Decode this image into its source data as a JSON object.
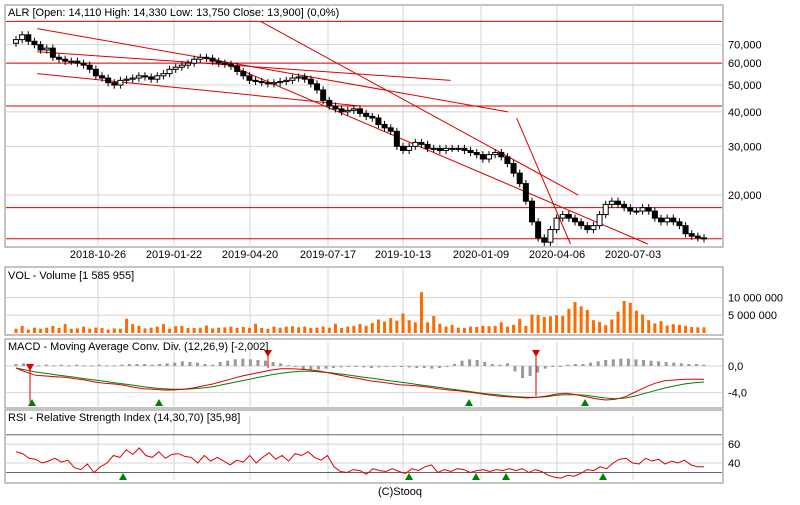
{
  "footer": "(C)Stooq",
  "colors": {
    "candle_up": "#ffffff",
    "candle_down": "#000000",
    "trendline": "#dd0000",
    "volume": "#ff6a00",
    "macd_line": "#dd0000",
    "signal_line": "#008000",
    "histogram": "#999999",
    "rsi_line": "#dd0000",
    "marker_up": "#008000",
    "marker_down": "#dd0000",
    "grid": "#d4d4d4",
    "frame": "#888888"
  },
  "chart_data": [
    {
      "type": "candlestick",
      "title": "ALR [Open: 14,110  High: 14,330  Low: 13,750  Close: 13,900] (0,0%)",
      "scale": "log",
      "ylim": [
        13300,
        95000
      ],
      "y_ticks": [
        70000,
        60000,
        50000,
        40000,
        30000,
        20000
      ],
      "y_tick_labels": [
        "70,000",
        "60,000",
        "50,000",
        "40,000",
        "30,000",
        "20,000"
      ],
      "x_tick_labels": [
        "2018-10-26",
        "2019-01-22",
        "2019-04-20",
        "2019-07-17",
        "2019-10-13",
        "2020-01-09",
        "2020-04-06",
        "2020-07-03"
      ],
      "grid": true,
      "horizontal_lines": [
        85000,
        60000,
        42000,
        18000,
        13900
      ],
      "closes": [
        73000,
        76000,
        72000,
        70000,
        67000,
        68000,
        63000,
        62000,
        61000,
        61000,
        60000,
        59000,
        57000,
        54000,
        53000,
        51000,
        50000,
        52000,
        52500,
        53000,
        54000,
        53500,
        52500,
        54000,
        55000,
        57000,
        58000,
        59000,
        60000,
        62000,
        63000,
        62500,
        61000,
        60000,
        59500,
        58500,
        56000,
        54000,
        52000,
        51500,
        51000,
        50500,
        51000,
        51500,
        52000,
        53000,
        53500,
        52500,
        50500,
        48000,
        44000,
        42000,
        41000,
        40000,
        40500,
        41000,
        39500,
        38500,
        38000,
        36000,
        35000,
        34000,
        30000,
        29000,
        30000,
        31000,
        30500,
        29500,
        29500,
        29000,
        29500,
        29500,
        29500,
        29000,
        28500,
        28000,
        27000,
        28000,
        28500,
        27500,
        26000,
        24000,
        22000,
        19000,
        16000,
        14000,
        13500,
        15000,
        16500,
        17000,
        16500,
        16000,
        15500,
        15000,
        15500,
        17000,
        18500,
        19000,
        18500,
        18000,
        17500,
        17500,
        18000,
        17500,
        16500,
        16000,
        16500,
        16000,
        15500,
        14500,
        14200,
        14000,
        13900
      ],
      "series": [
        {
          "name": "",
          "type": "trendline",
          "points": [
            [
              "2018-08-17",
              80000
            ],
            [
              "2020-02-10",
              40000
            ]
          ]
        },
        {
          "name": "",
          "type": "trendline",
          "points": [
            [
              "2018-08-17",
              55000
            ],
            [
              "2019-08-24",
              42000
            ]
          ]
        },
        {
          "name": "",
          "type": "trendline",
          "points": [
            [
              "2018-08-17",
              66000
            ],
            [
              "2019-12-06",
              52000
            ]
          ]
        },
        {
          "name": "",
          "type": "trendline",
          "points": [
            [
              "2019-03-10",
              62000
            ],
            [
              "2020-07-20",
              13300
            ]
          ]
        },
        {
          "name": "",
          "type": "trendline",
          "points": [
            [
              "2019-05-01",
              85000
            ],
            [
              "2020-05-01",
              20000
            ]
          ]
        },
        {
          "name": "",
          "type": "trendline",
          "points": [
            [
              "2020-02-20",
              38000
            ],
            [
              "2020-04-22",
              13300
            ]
          ]
        }
      ]
    },
    {
      "type": "bar",
      "title": "VOL - Volume [1 585 955]",
      "ylim": [
        0,
        13500000
      ],
      "y_ticks": [
        10000000,
        5000000
      ],
      "y_tick_labels": [
        "10 000 000",
        "5 000 000"
      ],
      "values": [
        1200000,
        2000000,
        1000000,
        1500000,
        1200000,
        1500000,
        2000000,
        1400000,
        2500000,
        1200000,
        1300000,
        1800000,
        1200000,
        1500000,
        1400000,
        1000000,
        1300000,
        1200000,
        4000000,
        2500000,
        2000000,
        1300000,
        1500000,
        1800000,
        2500000,
        1200000,
        1900000,
        2000000,
        1400000,
        1400000,
        1500000,
        2100000,
        1300000,
        1500000,
        1600000,
        1800000,
        1400000,
        1700000,
        1400000,
        2600000,
        1400000,
        1200000,
        1800000,
        1500000,
        1800000,
        1900000,
        1600000,
        1800000,
        1400000,
        1500000,
        1800000,
        1500000,
        2600000,
        1400000,
        1800000,
        2000000,
        2500000,
        2000000,
        2800000,
        3800000,
        3200000,
        4200000,
        3500000,
        5500000,
        3600000,
        3000000,
        11500000,
        3000000,
        4800000,
        2600000,
        1800000,
        2300000,
        1500000,
        1400000,
        1800000,
        1700000,
        2000000,
        1900000,
        2000000,
        3000000,
        1800000,
        2300000,
        4000000,
        2000000,
        5200000,
        5000000,
        4500000,
        4700000,
        5000000,
        4800000,
        6800000,
        8700000,
        7500000,
        6500000,
        3600000,
        3100000,
        2200000,
        3800000,
        6000000,
        9000000,
        8500000,
        6300000,
        5200000,
        3600000,
        2700000,
        3300000,
        2100000,
        2500000,
        2300000,
        2000000,
        1700000,
        1600000,
        1600000
      ]
    },
    {
      "type": "line",
      "title": "MACD - Moving Average Conv. Div. (12,26,9) [-2,002]",
      "ylim": [
        -6,
        1.8
      ],
      "y_ticks": [
        0,
        -4
      ],
      "y_tick_labels": [
        "0,0",
        "-4,0"
      ],
      "series": [
        {
          "name": "",
          "values": [
            -0.3,
            -0.9,
            -1.4,
            -1.5,
            -1.6,
            -1.7,
            -1.9,
            -2.1,
            -2.4,
            -2.6,
            -2.7,
            -2.9,
            -3.2,
            -3.4,
            -3.5,
            -3.6,
            -3.6,
            -3.5,
            -3.3,
            -3.0,
            -2.7,
            -2.3,
            -1.9,
            -1.5,
            -1.2,
            -0.9,
            -0.6,
            -0.4,
            -0.4,
            -0.5,
            -0.6,
            -0.8,
            -1.1,
            -1.4,
            -1.7,
            -1.9,
            -2.2,
            -2.4,
            -2.6,
            -2.8,
            -2.9,
            -3.0,
            -3.2,
            -3.4,
            -3.6,
            -3.7,
            -3.9,
            -4.1,
            -4.3,
            -4.5,
            -4.6,
            -4.7,
            -4.8,
            -4.7,
            -4.5,
            -4.2,
            -4.1,
            -4.3,
            -4.6,
            -4.9,
            -5.1,
            -5.0,
            -4.6,
            -3.9,
            -3.2,
            -2.6,
            -2.2,
            -2.1,
            -2.0,
            -2.0,
            -2.0
          ]
        },
        {
          "name": "",
          "values": [
            -0.3,
            -0.6,
            -0.9,
            -1.1,
            -1.3,
            -1.5,
            -1.7,
            -1.9,
            -2.1,
            -2.3,
            -2.5,
            -2.7,
            -2.9,
            -3.1,
            -3.3,
            -3.4,
            -3.5,
            -3.5,
            -3.4,
            -3.3,
            -3.1,
            -2.8,
            -2.5,
            -2.2,
            -1.9,
            -1.6,
            -1.3,
            -1.1,
            -0.9,
            -0.8,
            -0.8,
            -0.9,
            -1.0,
            -1.2,
            -1.4,
            -1.6,
            -1.8,
            -2.0,
            -2.2,
            -2.4,
            -2.6,
            -2.8,
            -3.0,
            -3.2,
            -3.4,
            -3.6,
            -3.8,
            -4.0,
            -4.2,
            -4.3,
            -4.5,
            -4.6,
            -4.7,
            -4.7,
            -4.6,
            -4.4,
            -4.3,
            -4.3,
            -4.4,
            -4.6,
            -4.8,
            -4.9,
            -4.8,
            -4.5,
            -4.1,
            -3.7,
            -3.3,
            -3.0,
            -2.7,
            -2.5,
            -2.4
          ]
        }
      ],
      "histogram": [
        0.3,
        0.4,
        0.3,
        0.1,
        0.2,
        0.1,
        0.2,
        0.1,
        0.2,
        0.1,
        0.1,
        0.2,
        0.1,
        0.1,
        0.2,
        0.3,
        0.3,
        0.3,
        0.2,
        0.3,
        0.4,
        0.5,
        0.7,
        0.6,
        0.5,
        0.3,
        0.2,
        0.6,
        0.8,
        1.0,
        1.1,
        1.0,
        0.9,
        0.8,
        0.6,
        0.4,
        0.1,
        -0.1,
        -0.5,
        -0.6,
        -0.5,
        -0.4,
        -0.3,
        -0.2,
        -0.1,
        -0.1,
        -0.2,
        -0.3,
        -0.2,
        -0.1,
        -0.1,
        -0.1,
        -0.2,
        -0.3,
        -0.3,
        -0.4,
        -0.3,
        -0.1,
        0.3,
        0.8,
        1.0,
        0.9,
        0.6,
        0.3,
        0.2,
        0.4,
        -0.8,
        -1.8,
        -1.5,
        -1.0,
        -0.4,
        -0.1,
        0.0,
        0.2,
        0.3,
        0.3,
        0.5,
        0.7,
        0.9,
        1.0,
        1.1,
        1.1,
        1.0,
        0.9,
        0.8,
        0.7,
        0.6,
        0.5,
        0.4,
        0.3,
        0.3,
        0.2
      ]
    },
    {
      "type": "line",
      "title": "RSI - Relative Strength Index (14,30,70) [35,98]",
      "ylim": [
        22,
        75
      ],
      "y_ticks": [
        60,
        40
      ],
      "y_tick_labels": [
        "60",
        "40"
      ],
      "horizontal_lines": [
        70,
        30
      ],
      "series": [
        {
          "name": "",
          "values": [
            52,
            50,
            45,
            44,
            40,
            42,
            45,
            41,
            43,
            35,
            33,
            39,
            30,
            36,
            40,
            48,
            46,
            54,
            49,
            56,
            48,
            46,
            52,
            45,
            49,
            50,
            47,
            46,
            40,
            48,
            42,
            46,
            42,
            38,
            43,
            41,
            48,
            40,
            46,
            51,
            44,
            48,
            42,
            50,
            48,
            52,
            46,
            43,
            48,
            36,
            31,
            30,
            33,
            32,
            28,
            34,
            32,
            31,
            34,
            31,
            29,
            34,
            32,
            36,
            38,
            30,
            33,
            31,
            34,
            33,
            30,
            32,
            33,
            31,
            33,
            32,
            34,
            32,
            34,
            30,
            33,
            31,
            27,
            25,
            24,
            27,
            26,
            29,
            33,
            32,
            36,
            34,
            40,
            44,
            45,
            40,
            39,
            45,
            42,
            44,
            39,
            42,
            40,
            43,
            38,
            36,
            36
          ]
        }
      ]
    }
  ]
}
